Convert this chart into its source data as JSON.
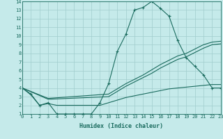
{
  "xlabel": "Humidex (Indice chaleur)",
  "xlim": [
    0,
    23
  ],
  "ylim": [
    1,
    14
  ],
  "xticks": [
    0,
    1,
    2,
    3,
    4,
    5,
    6,
    7,
    8,
    9,
    10,
    11,
    12,
    13,
    14,
    15,
    16,
    17,
    18,
    19,
    20,
    21,
    22,
    23
  ],
  "yticks": [
    1,
    2,
    3,
    4,
    5,
    6,
    7,
    8,
    9,
    10,
    11,
    12,
    13,
    14
  ],
  "bg_color": "#c5eaea",
  "grid_color": "#a0cdcd",
  "line_color": "#1a6b5e",
  "curve_main": {
    "x": [
      0,
      1,
      2,
      3,
      4,
      5,
      6,
      7,
      8,
      9,
      10,
      11,
      12,
      13,
      14,
      15,
      16,
      17,
      18,
      19,
      20,
      21,
      22,
      23
    ],
    "y": [
      4,
      3.3,
      2,
      2.3,
      1,
      1,
      1,
      1,
      1,
      2.3,
      4.5,
      8.2,
      10.2,
      13,
      13.3,
      14,
      13.2,
      12.3,
      9.5,
      7.5,
      6.5,
      5.5,
      4,
      4
    ]
  },
  "curve_diag_upper": {
    "x": [
      0,
      3,
      10,
      11,
      12,
      13,
      14,
      15,
      16,
      17,
      18,
      19,
      20,
      21,
      22,
      23
    ],
    "y": [
      4,
      2.8,
      3.3,
      3.9,
      4.5,
      5.0,
      5.5,
      6.1,
      6.7,
      7.2,
      7.7,
      8.0,
      8.5,
      9.0,
      9.3,
      9.4
    ]
  },
  "curve_diag_lower": {
    "x": [
      0,
      3,
      10,
      11,
      12,
      13,
      14,
      15,
      16,
      17,
      18,
      19,
      20,
      21,
      22,
      23
    ],
    "y": [
      4,
      2.7,
      3.0,
      3.6,
      4.2,
      4.7,
      5.2,
      5.7,
      6.3,
      6.8,
      7.3,
      7.6,
      8.1,
      8.6,
      9.0,
      9.1
    ]
  },
  "curve_flat": {
    "x": [
      0,
      1,
      2,
      3,
      4,
      5,
      6,
      7,
      8,
      9,
      10,
      11,
      12,
      13,
      14,
      15,
      16,
      17,
      18,
      19,
      20,
      21,
      22,
      23
    ],
    "y": [
      4,
      3.2,
      2,
      2.2,
      2,
      2,
      2,
      2,
      2,
      2,
      2.3,
      2.6,
      2.9,
      3.1,
      3.3,
      3.5,
      3.7,
      3.9,
      4.0,
      4.1,
      4.2,
      4.3,
      4.4,
      4.4
    ]
  }
}
